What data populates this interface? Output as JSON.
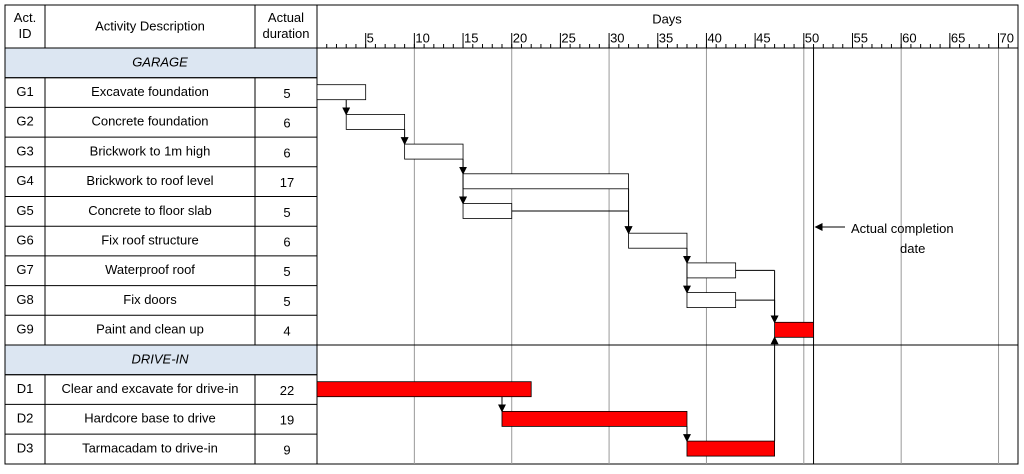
{
  "chart_data": {
    "type": "gantt",
    "headers": {
      "id": "Act. ID",
      "description": "Activity Description",
      "duration": "Actual duration",
      "axis": "Days"
    },
    "xlim": [
      0,
      72
    ],
    "xticks": [
      5,
      10,
      15,
      20,
      25,
      30,
      35,
      40,
      45,
      50,
      55,
      60,
      65,
      70
    ],
    "completion": 51,
    "annotation": "Actual completion date",
    "sections": [
      {
        "name": "GARAGE",
        "tasks": [
          {
            "id": "G1",
            "description": "Excavate foundation",
            "start": 0,
            "duration": 5,
            "color": "#ffffff"
          },
          {
            "id": "G2",
            "description": "Concrete foundation",
            "start": 3,
            "duration": 6,
            "color": "#ffffff"
          },
          {
            "id": "G3",
            "description": "Brickwork to 1m high",
            "start": 9,
            "duration": 6,
            "color": "#ffffff"
          },
          {
            "id": "G4",
            "description": "Brickwork to roof level",
            "start": 15,
            "duration": 17,
            "color": "#ffffff"
          },
          {
            "id": "G5",
            "description": "Concrete to floor slab",
            "start": 15,
            "duration": 5,
            "color": "#ffffff"
          },
          {
            "id": "G6",
            "description": "Fix roof structure",
            "start": 32,
            "duration": 6,
            "color": "#ffffff"
          },
          {
            "id": "G7",
            "description": "Waterproof roof",
            "start": 38,
            "duration": 5,
            "color": "#ffffff"
          },
          {
            "id": "G8",
            "description": "Fix doors",
            "start": 38,
            "duration": 5,
            "color": "#ffffff"
          },
          {
            "id": "G9",
            "description": "Paint and clean up",
            "start": 47,
            "duration": 4,
            "color": "#ff0000"
          }
        ]
      },
      {
        "name": "DRIVE-IN",
        "tasks": [
          {
            "id": "D1",
            "description": "Clear and excavate for drive-in",
            "start": 0,
            "duration": 22,
            "color": "#ff0000"
          },
          {
            "id": "D2",
            "description": "Hardcore base to drive",
            "start": 19,
            "duration": 19,
            "color": "#ff0000"
          },
          {
            "id": "D3",
            "description": "Tarmacadam to drive-in",
            "start": 38,
            "duration": 9,
            "color": "#ff0000"
          }
        ]
      }
    ]
  }
}
